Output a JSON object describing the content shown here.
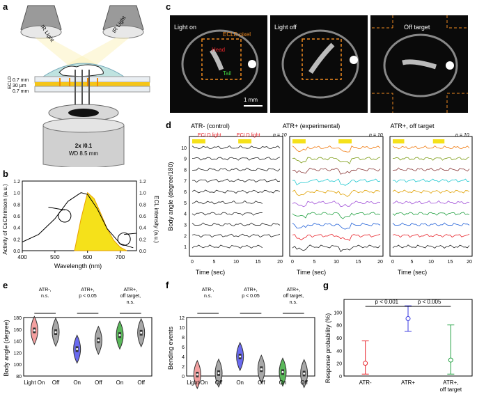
{
  "panels": {
    "a": {
      "label": "a",
      "ir_light_left": "IR Light",
      "ir_light_right": "IR Light",
      "ecld_label": "ECLD",
      "layers": [
        "0.7 mm",
        "30 μm",
        "0.7 mm"
      ],
      "objective_line1": "2x /0.1",
      "objective_line2": "WD 8.5 mm"
    },
    "b": {
      "label": "b",
      "xlabel": "Wavelength (nm)",
      "ylabel_left": "Activity of CsChrimson (a.u.)",
      "ylabel_right": "ECL intensity (a.u.)",
      "xticks": [
        "400",
        "500",
        "600",
        "700"
      ],
      "yticks": [
        "0.0",
        "0.2",
        "0.4",
        "0.6",
        "0.8",
        "1.0",
        "1.2"
      ],
      "colors": {
        "ecl_fill": "#f5e11a",
        "ecl_edge": "#e8a000"
      }
    },
    "c": {
      "label": "c",
      "titles": [
        "Light on",
        "Light off",
        "Off target"
      ],
      "ecld_pixel": "ECLD pixel",
      "head": "Head",
      "tail": "Tail",
      "scalebar": "1 mm"
    },
    "d": {
      "label": "d",
      "titles": [
        "ATR- (control)",
        "ATR+ (experimental)",
        "ATR+, off target"
      ],
      "n_label": "n = 10",
      "ecld_light": "ECLD light",
      "xlabel": "Time (sec)",
      "ylabel": "Body angle (degree/180)",
      "xticks": [
        "0",
        "5",
        "10",
        "15",
        "20"
      ],
      "yticks": [
        "1",
        "2",
        "3",
        "4",
        "5",
        "6",
        "7",
        "8",
        "9",
        "10"
      ],
      "trace_colors": [
        "#222222",
        "#e8242b",
        "#2060d8",
        "#20a040",
        "#a050d8",
        "#e0a000",
        "#20c8d0",
        "#8b3a3a",
        "#7a9a10",
        "#f07a10"
      ]
    },
    "e": {
      "label": "e",
      "ylabel": "Body angle (degree)",
      "yticks": [
        "80",
        "100",
        "120",
        "140",
        "160",
        "180"
      ],
      "groups": [
        {
          "line1": "ATR-,",
          "line2": "n.s.",
          "line3": ""
        },
        {
          "line1": "ATR+,",
          "line2": "p < 0.05",
          "line3": ""
        },
        {
          "line1": "ATR+,",
          "line2": "off target,",
          "line3": "n.s."
        }
      ],
      "xticks": [
        "Light On",
        "Off",
        "On",
        "Off",
        "On",
        "Off"
      ],
      "medians": [
        158,
        155,
        126,
        141,
        150,
        154
      ]
    },
    "f": {
      "label": "f",
      "ylabel": "Bending events",
      "yticks": [
        "0",
        "2",
        "4",
        "6",
        "8",
        "10",
        "12"
      ],
      "groups": [
        {
          "line1": "ATR-,",
          "line2": "n.s.",
          "line3": ""
        },
        {
          "line1": "ATR+,",
          "line2": "p < 0.05",
          "line3": ""
        },
        {
          "line1": "ATR+,",
          "line2": "off target,",
          "line3": "n.s."
        }
      ],
      "xticks": [
        "Light On",
        "Off",
        "On",
        "Off",
        "On",
        "Off"
      ],
      "medians": [
        0.3,
        0.6,
        4.0,
        1.4,
        0.8,
        0.5
      ]
    },
    "g": {
      "label": "g",
      "ylabel": "Response probability (%)",
      "yticks": [
        "0",
        "20",
        "40",
        "60",
        "80",
        "100"
      ],
      "p1": "p < 0.001",
      "p2": "p < 0.005",
      "xticks": [
        {
          "line1": "ATR-",
          "line2": ""
        },
        {
          "line1": "ATR+",
          "line2": ""
        },
        {
          "line1": "ATR+,",
          "line2": "off target"
        }
      ]
    }
  },
  "chart_data": [
    {
      "panel": "g",
      "type": "scatter",
      "categories": [
        "ATR-",
        "ATR+",
        "ATR+, off target"
      ],
      "values": [
        20,
        90,
        25
      ],
      "error_low": [
        3,
        70,
        3
      ],
      "error_high": [
        55,
        110,
        80
      ],
      "colors": [
        "#e8242b",
        "#3a3ae0",
        "#20a040"
      ],
      "ylim": [
        0,
        120
      ]
    },
    {
      "panel": "b",
      "type": "line",
      "series": [
        {
          "x": [
            400,
            450,
            500,
            540,
            580,
            600,
            630,
            660,
            700,
            740
          ],
          "values": [
            0.15,
            0.28,
            0.55,
            0.85,
            1.0,
            0.97,
            0.72,
            0.38,
            0.12,
            0.05
          ]
        },
        {
          "x": [
            560,
            580,
            600,
            620,
            640,
            660,
            680,
            700,
            720
          ],
          "values": [
            0.0,
            0.55,
            1.0,
            0.9,
            0.65,
            0.38,
            0.18,
            0.06,
            0.0
          ]
        }
      ],
      "xlim": [
        400,
        750
      ],
      "ylim": [
        0,
        1.2
      ]
    }
  ]
}
